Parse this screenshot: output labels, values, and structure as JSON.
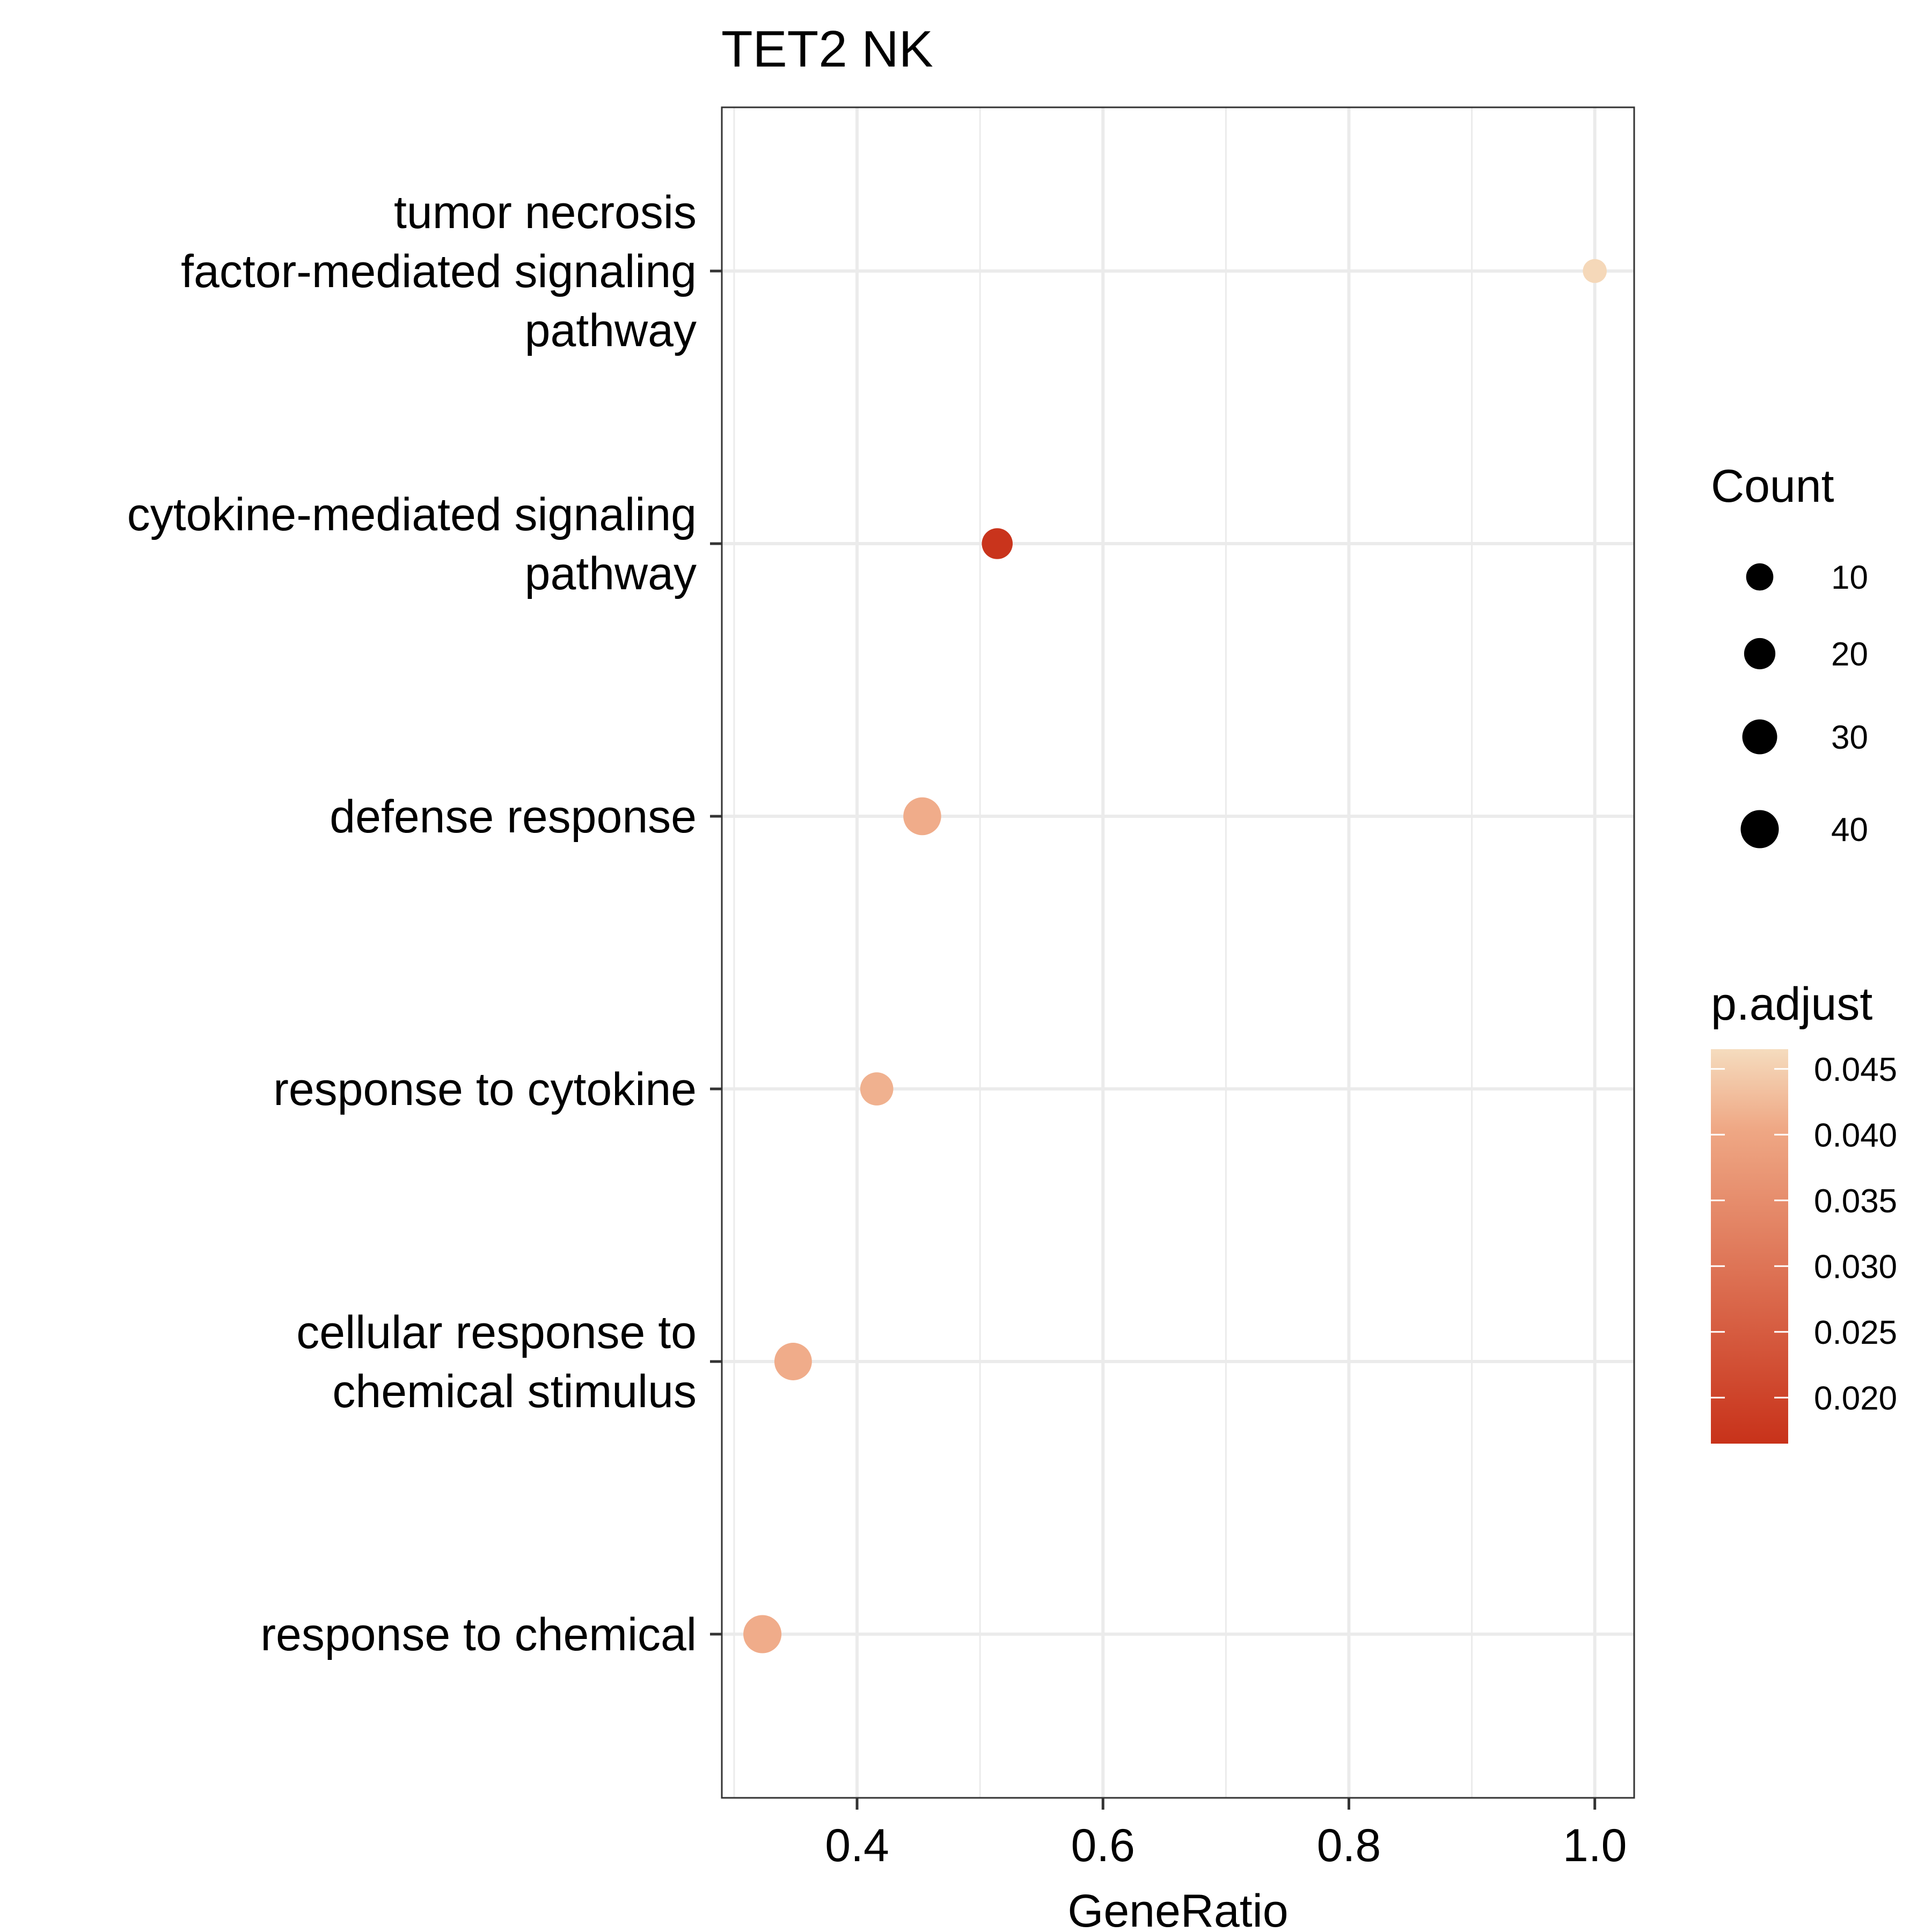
{
  "chart_data": {
    "type": "scatter",
    "title": "TET2 NK",
    "xlabel": "GeneRatio",
    "ylabel": "",
    "xlim": [
      0.29,
      1.032
    ],
    "xticks": [
      "0.4",
      "0.6",
      "0.8",
      "1.0"
    ],
    "xtick_values": [
      0.4,
      0.6,
      0.8,
      1.0
    ],
    "grid": true,
    "categories": [
      {
        "lines": [
          "tumor necrosis",
          "factor-mediated signaling",
          "pathway"
        ]
      },
      {
        "lines": [
          "cytokine-mediated signaling",
          "pathway"
        ]
      },
      {
        "lines": [
          "defense response"
        ]
      },
      {
        "lines": [
          "response to cytokine"
        ]
      },
      {
        "lines": [
          "cellular response to",
          "chemical stimulus"
        ]
      },
      {
        "lines": [
          "response to chemical"
        ]
      }
    ],
    "points": [
      {
        "category": 0,
        "x": 1.0,
        "count": 3,
        "p_adjust": 0.046
      },
      {
        "category": 1,
        "x": 0.514,
        "count": 19,
        "p_adjust": 0.017
      },
      {
        "category": 2,
        "x": 0.453,
        "count": 39,
        "p_adjust": 0.041
      },
      {
        "category": 3,
        "x": 0.416,
        "count": 25,
        "p_adjust": 0.0415
      },
      {
        "category": 4,
        "x": 0.348,
        "count": 38,
        "p_adjust": 0.041
      },
      {
        "category": 5,
        "x": 0.323,
        "count": 40,
        "p_adjust": 0.041
      }
    ],
    "size_legend": {
      "title": "Count",
      "entries": [
        {
          "label": "10",
          "value": 10
        },
        {
          "label": "20",
          "value": 20
        },
        {
          "label": "30",
          "value": 30
        },
        {
          "label": "40",
          "value": 40
        }
      ]
    },
    "color_legend": {
      "title": "p.adjust",
      "range": [
        0.0165,
        0.0465
      ],
      "color_low": "#C8321A",
      "color_mid": "#EFA885",
      "color_high": "#F5DCBE",
      "ticks": [
        {
          "label": "0.045",
          "value": 0.045
        },
        {
          "label": "0.040",
          "value": 0.04
        },
        {
          "label": "0.035",
          "value": 0.035
        },
        {
          "label": "0.030",
          "value": 0.03
        },
        {
          "label": "0.025",
          "value": 0.025
        },
        {
          "label": "0.020",
          "value": 0.02
        }
      ]
    }
  }
}
